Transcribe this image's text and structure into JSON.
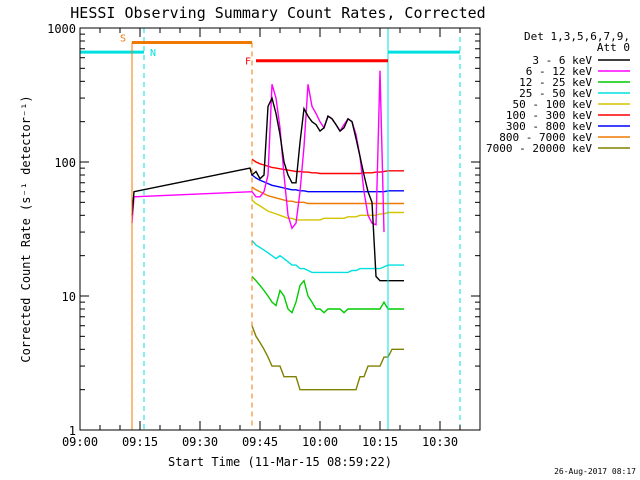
{
  "chart_data": {
    "type": "line",
    "title": "HESSI Observing Summary Count Rates, Corrected",
    "xlabel": "Start Time (11-Mar-15 08:59:22)",
    "ylabel": "Corrected Count Rate (s⁻¹ detector⁻¹)",
    "y_scale": "log",
    "ylim": [
      1,
      1000
    ],
    "xlim": [
      "09:00",
      "10:40"
    ],
    "x_ticks": [
      "09:00",
      "09:15",
      "09:30",
      "09:45",
      "10:00",
      "10:15",
      "10:30"
    ],
    "y_ticks": [
      "1",
      "10",
      "100",
      "1000"
    ],
    "grid": false,
    "legend_title": [
      "Det 1,3,5,6,7,9,",
      "Att 0"
    ],
    "legend_position": "right",
    "footer": "26-Aug-2017 08:17",
    "flags": {
      "saa": {
        "label": "S",
        "color": "#f07800",
        "start": "09:13",
        "end": "09:43",
        "y": 780
      },
      "night": {
        "label": "N",
        "color": "#00e0e0",
        "segments": [
          [
            "09:00",
            "09:16"
          ],
          [
            "10:17",
            "10:35"
          ]
        ],
        "y": 660
      },
      "flare": {
        "label": "F",
        "color": "#ff0000",
        "start": "09:44",
        "end": "10:17",
        "y": 570
      }
    },
    "series": [
      {
        "name": "3 - 6 keV",
        "color": "#000000",
        "x": [
          "09:13",
          "09:13.5",
          "09:42.5",
          "09:43",
          "09:44",
          "09:45",
          "09:46",
          "09:47",
          "09:48",
          "09:49",
          "09:50",
          "09:51",
          "09:52",
          "09:53",
          "09:54",
          "09:55",
          "09:56",
          "09:57",
          "09:58",
          "09:59",
          "10:00",
          "10:01",
          "10:02",
          "10:03",
          "10:04",
          "10:05",
          "10:06",
          "10:07",
          "10:08",
          "10:09",
          "10:10",
          "10:11",
          "10:12",
          "10:13",
          "10:14",
          "10:15",
          "10:16",
          "10:17",
          "10:18",
          "10:19",
          "10:20",
          "10:21"
        ],
        "values": [
          40,
          60,
          90,
          80,
          85,
          75,
          80,
          260,
          300,
          230,
          160,
          100,
          80,
          70,
          70,
          140,
          250,
          220,
          200,
          190,
          170,
          180,
          220,
          210,
          190,
          170,
          180,
          210,
          200,
          150,
          110,
          80,
          60,
          50,
          14,
          13,
          13,
          13,
          13,
          13,
          13,
          13
        ]
      },
      {
        "name": "6 - 12 keV",
        "color": "#ff00ff",
        "x": [
          "09:13",
          "09:13.5",
          "09:43",
          "09:44",
          "09:45",
          "09:46",
          "09:47",
          "09:48",
          "09:49",
          "09:50",
          "09:51",
          "09:52",
          "09:53",
          "09:54",
          "09:55",
          "09:56",
          "09:57",
          "09:58",
          "09:59",
          "10:00",
          "10:01",
          "10:02",
          "10:03",
          "10:04",
          "10:05",
          "10:06",
          "10:07",
          "10:08",
          "10:09",
          "10:10",
          "10:11",
          "10:12",
          "10:13",
          "10:14",
          "10:15",
          "10:16"
        ],
        "values": [
          35,
          55,
          60,
          55,
          55,
          60,
          80,
          380,
          300,
          180,
          80,
          40,
          32,
          35,
          60,
          130,
          380,
          260,
          230,
          200,
          180,
          220,
          210,
          190,
          170,
          190,
          210,
          200,
          160,
          110,
          60,
          40,
          35,
          34,
          480,
          30
        ]
      },
      {
        "name": "12 - 25 keV",
        "color": "#00cc00",
        "x": [
          "09:43",
          "09:44",
          "09:45",
          "09:46",
          "09:47",
          "09:48",
          "09:49",
          "09:50",
          "09:51",
          "09:52",
          "09:53",
          "09:54",
          "09:55",
          "09:56",
          "09:57",
          "09:58",
          "09:59",
          "10:00",
          "10:01",
          "10:02",
          "10:03",
          "10:04",
          "10:05",
          "10:06",
          "10:07",
          "10:08",
          "10:09",
          "10:10",
          "10:11",
          "10:12",
          "10:13",
          "10:14",
          "10:15",
          "10:16",
          "10:17",
          "10:18",
          "10:19",
          "10:20",
          "10:21"
        ],
        "values": [
          14,
          13,
          12,
          11,
          10,
          9,
          8.5,
          11,
          10,
          8,
          7.5,
          9,
          12,
          13,
          10,
          9,
          8,
          8,
          7.5,
          8,
          8,
          8,
          8,
          7.5,
          8,
          8,
          8,
          8,
          8,
          8,
          8,
          8,
          8,
          9,
          8,
          8,
          8,
          8,
          8
        ]
      },
      {
        "name": "25 - 50 keV",
        "color": "#00e0e0",
        "x": [
          "09:43",
          "09:44",
          "09:45",
          "09:46",
          "09:47",
          "09:48",
          "09:49",
          "09:50",
          "09:51",
          "09:52",
          "09:53",
          "09:54",
          "09:55",
          "09:56",
          "09:57",
          "09:58",
          "09:59",
          "10:00",
          "10:01",
          "10:02",
          "10:03",
          "10:04",
          "10:05",
          "10:06",
          "10:07",
          "10:08",
          "10:09",
          "10:10",
          "10:11",
          "10:12",
          "10:13",
          "10:14",
          "10:15",
          "10:16",
          "10:17",
          "10:18",
          "10:19",
          "10:20",
          "10:21"
        ],
        "values": [
          26,
          24,
          23,
          22,
          21,
          20,
          19,
          20,
          19,
          18,
          17,
          17,
          16,
          16,
          15.5,
          15,
          15,
          15,
          15,
          15,
          15,
          15,
          15,
          15,
          15,
          15.5,
          15.5,
          16,
          16,
          16,
          16,
          16,
          16,
          16.5,
          17,
          17,
          17,
          17,
          17
        ]
      },
      {
        "name": "50 - 100 keV",
        "color": "#d4c400",
        "x": [
          "09:43",
          "09:44",
          "09:45",
          "09:46",
          "09:47",
          "09:48",
          "09:49",
          "09:50",
          "09:51",
          "09:52",
          "09:53",
          "09:54",
          "09:55",
          "09:56",
          "09:57",
          "09:58",
          "09:59",
          "10:00",
          "10:01",
          "10:02",
          "10:03",
          "10:04",
          "10:05",
          "10:06",
          "10:07",
          "10:08",
          "10:09",
          "10:10",
          "10:11",
          "10:12",
          "10:13",
          "10:14",
          "10:15",
          "10:16",
          "10:17",
          "10:18",
          "10:19",
          "10:20",
          "10:21"
        ],
        "values": [
          52,
          49,
          47,
          45,
          43,
          42,
          41,
          40,
          39,
          38,
          38,
          37,
          37,
          37,
          37,
          37,
          37,
          37,
          38,
          38,
          38,
          38,
          38,
          38,
          39,
          39,
          39,
          40,
          40,
          40,
          40,
          40,
          41,
          41,
          42,
          42,
          42,
          42,
          42
        ]
      },
      {
        "name": "100 - 300 keV",
        "color": "#ff0000",
        "x": [
          "09:43",
          "09:44",
          "09:45",
          "09:46",
          "09:47",
          "09:48",
          "09:49",
          "09:50",
          "09:51",
          "09:52",
          "09:53",
          "09:54",
          "09:55",
          "09:56",
          "09:57",
          "09:58",
          "09:59",
          "10:00",
          "10:01",
          "10:02",
          "10:03",
          "10:04",
          "10:05",
          "10:06",
          "10:07",
          "10:08",
          "10:09",
          "10:10",
          "10:11",
          "10:12",
          "10:13",
          "10:14",
          "10:15",
          "10:16",
          "10:17",
          "10:18",
          "10:19",
          "10:20",
          "10:21"
        ],
        "values": [
          105,
          100,
          97,
          95,
          93,
          91,
          90,
          89,
          88,
          87,
          86,
          85,
          85,
          84,
          84,
          83,
          83,
          82,
          82,
          82,
          82,
          82,
          82,
          82,
          82,
          82,
          82,
          82,
          83,
          83,
          83,
          84,
          84,
          85,
          86,
          86,
          86,
          86,
          86
        ]
      },
      {
        "name": "300 - 800 keV",
        "color": "#0000ff",
        "x": [
          "09:43",
          "09:44",
          "09:45",
          "09:46",
          "09:47",
          "09:48",
          "09:49",
          "09:50",
          "09:51",
          "09:52",
          "09:53",
          "09:54",
          "09:55",
          "09:56",
          "09:57",
          "09:58",
          "09:59",
          "10:00",
          "10:01",
          "10:02",
          "10:03",
          "10:04",
          "10:05",
          "10:06",
          "10:07",
          "10:08",
          "10:09",
          "10:10",
          "10:11",
          "10:12",
          "10:13",
          "10:14",
          "10:15",
          "10:16",
          "10:17",
          "10:18",
          "10:19",
          "10:20",
          "10:21"
        ],
        "values": [
          80,
          76,
          73,
          71,
          69,
          67,
          66,
          65,
          64,
          63,
          62,
          62,
          61,
          61,
          60,
          60,
          60,
          60,
          60,
          60,
          60,
          60,
          60,
          60,
          60,
          60,
          60,
          60,
          60,
          60,
          60,
          60,
          60,
          60,
          61,
          61,
          61,
          61,
          61
        ]
      },
      {
        "name": "800 - 7000 keV",
        "color": "#f07800",
        "x": [
          "09:43",
          "09:44",
          "09:45",
          "09:46",
          "09:47",
          "09:48",
          "09:49",
          "09:50",
          "09:51",
          "09:52",
          "09:53",
          "09:54",
          "09:55",
          "09:56",
          "09:57",
          "09:58",
          "09:59",
          "10:00",
          "10:01",
          "10:02",
          "10:03",
          "10:04",
          "10:05",
          "10:06",
          "10:07",
          "10:08",
          "10:09",
          "10:10",
          "10:11",
          "10:12",
          "10:13",
          "10:14",
          "10:15",
          "10:16",
          "10:17",
          "10:18",
          "10:19",
          "10:20",
          "10:21"
        ],
        "values": [
          65,
          62,
          60,
          58,
          56,
          55,
          54,
          53,
          52,
          51,
          51,
          50,
          50,
          50,
          49,
          49,
          49,
          49,
          49,
          49,
          49,
          49,
          49,
          49,
          49,
          49,
          49,
          49,
          49,
          49,
          49,
          49,
          49,
          49,
          49,
          49,
          49,
          49,
          49
        ]
      },
      {
        "name": "7000 - 20000 keV",
        "color": "#808000",
        "x": [
          "09:43",
          "09:44",
          "09:45",
          "09:46",
          "09:47",
          "09:48",
          "09:49",
          "09:50",
          "09:51",
          "09:52",
          "09:53",
          "09:54",
          "09:55",
          "09:56",
          "09:57",
          "09:58",
          "09:59",
          "10:00",
          "10:01",
          "10:02",
          "10:03",
          "10:04",
          "10:05",
          "10:06",
          "10:07",
          "10:08",
          "10:09",
          "10:10",
          "10:11",
          "10:12",
          "10:13",
          "10:14",
          "10:15",
          "10:16",
          "10:17",
          "10:18",
          "10:19",
          "10:20",
          "10:21"
        ],
        "values": [
          6,
          5,
          4.5,
          4,
          3.5,
          3,
          3,
          3,
          2.5,
          2.5,
          2.5,
          2.5,
          2,
          2,
          2,
          2,
          2,
          2,
          2,
          2,
          2,
          2,
          2,
          2,
          2,
          2,
          2,
          2.5,
          2.5,
          3,
          3,
          3,
          3,
          3.5,
          3.5,
          4,
          4,
          4,
          4
        ]
      }
    ]
  }
}
